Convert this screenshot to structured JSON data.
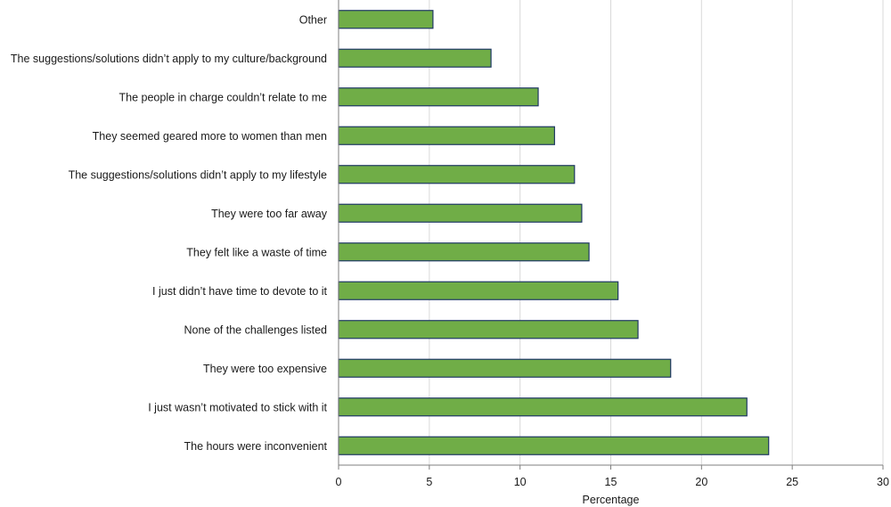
{
  "chart_data": {
    "type": "bar",
    "orientation": "horizontal",
    "title": "",
    "xlabel": "Percentage",
    "ylabel": "",
    "xlim": [
      0,
      30
    ],
    "xticks": [
      "0",
      "5",
      "10",
      "15",
      "20",
      "25",
      "30"
    ],
    "grid": true,
    "legend": "none",
    "bar_color": "#70AD47",
    "bar_edge_color": "#1F3864",
    "grid_color": "#D9D9D9",
    "categories": [
      "Other",
      "The suggestions/solutions didn’t apply to my culture/background",
      "The people in charge couldn’t relate to me",
      "They seemed geared more to women than men",
      "The suggestions/solutions didn’t apply to my lifestyle",
      "They were too far away",
      "They felt like a waste of time",
      "I just didn’t have time to devote to it",
      "None of the challenges listed",
      "They were too expensive",
      "I just wasn’t motivated to stick with it",
      "The hours were inconvenient"
    ],
    "values": [
      5.2,
      8.4,
      11.0,
      11.9,
      13.0,
      13.4,
      13.8,
      15.4,
      16.5,
      18.3,
      22.5,
      23.7
    ]
  }
}
